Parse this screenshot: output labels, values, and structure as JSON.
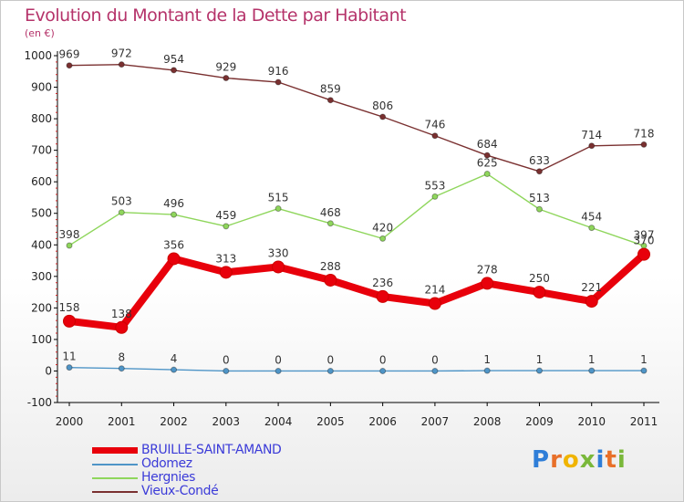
{
  "header": {
    "title": "Evolution du Montant de la Dette par Habitant",
    "unit": "(en €)"
  },
  "logo": {
    "text": "Proxiti",
    "colors": [
      "#2f7ed8",
      "#e8702a",
      "#f0b400",
      "#7ab83a",
      "#2f7ed8",
      "#e8702a",
      "#7ab83a"
    ]
  },
  "chart_data": {
    "type": "line",
    "title": "Evolution du Montant de la Dette par Habitant",
    "subtitle": "(en €)",
    "x": [
      "2000",
      "2001",
      "2002",
      "2003",
      "2004",
      "2005",
      "2006",
      "2007",
      "2008",
      "2009",
      "2010",
      "2011"
    ],
    "ylim": [
      -100,
      1000
    ],
    "yticks": [
      -100,
      0,
      100,
      200,
      300,
      400,
      500,
      600,
      700,
      800,
      900,
      1000
    ],
    "grid": false,
    "legend_position": "bottom-left",
    "series": [
      {
        "name": "BRUILLE-SAINT-AMAND",
        "color": "#e8000b",
        "values": [
          158,
          138,
          356,
          313,
          330,
          288,
          236,
          214,
          278,
          250,
          221,
          370
        ],
        "labels": [
          "158",
          "138",
          "356",
          "313",
          "330",
          "288",
          "236",
          "214",
          "278",
          "250",
          "221",
          "370"
        ]
      },
      {
        "name": "Odomez",
        "color": "#4f95c7",
        "values": [
          11,
          8,
          4,
          0,
          0,
          0,
          0,
          0,
          1,
          1,
          1,
          1
        ],
        "labels": [
          "11",
          "8",
          "4",
          "0",
          "0",
          "0",
          "0",
          "0",
          "1",
          "1",
          "1",
          "1"
        ]
      },
      {
        "name": "Hergnies",
        "color": "#8fd65c",
        "values": [
          398,
          503,
          496,
          459,
          515,
          468,
          420,
          553,
          625,
          513,
          454,
          397
        ],
        "labels": [
          "398",
          "503",
          "496",
          "459",
          "515",
          "468",
          "420",
          "553",
          "625",
          "513",
          "454",
          "397"
        ]
      },
      {
        "name": "Vieux-Condé",
        "color": "#7a3030",
        "values": [
          969,
          972,
          954,
          929,
          916,
          859,
          806,
          746,
          684,
          633,
          714,
          718
        ],
        "labels": [
          "969",
          "972",
          "954",
          "929",
          "916",
          "859",
          "806",
          "746",
          "684",
          "633",
          "714",
          "718"
        ]
      }
    ]
  }
}
